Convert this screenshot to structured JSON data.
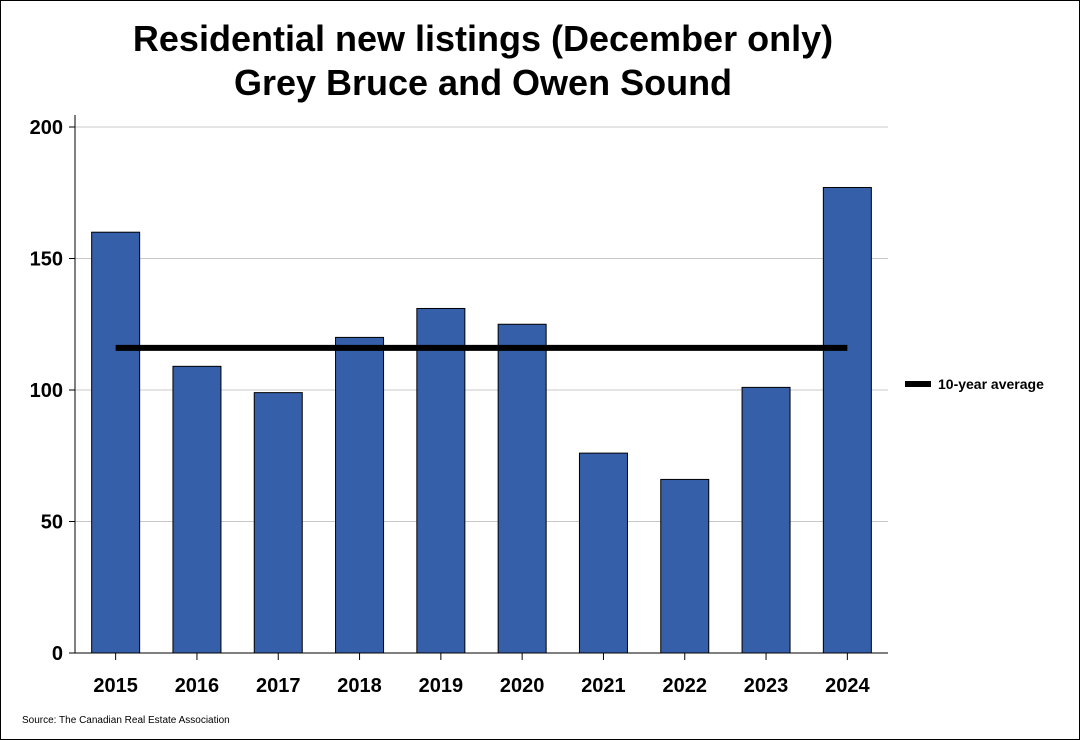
{
  "chart_data": {
    "type": "bar",
    "title": "Residential new listings (December only)",
    "subtitle": "Grey Bruce and Owen Sound",
    "categories": [
      "2015",
      "2016",
      "2017",
      "2018",
      "2019",
      "2020",
      "2021",
      "2022",
      "2023",
      "2024"
    ],
    "series": [
      {
        "name": "Residential new listings",
        "values": [
          160,
          109,
          99,
          120,
          131,
          125,
          76,
          66,
          101,
          177
        ]
      }
    ],
    "reference_line": {
      "name": "10-year average",
      "value": 116
    },
    "xlabel": "",
    "ylabel": "",
    "ylim": [
      0,
      200
    ],
    "yticks": [
      0,
      50,
      100,
      150,
      200
    ],
    "grid": true,
    "legend": {
      "placement": "right",
      "entries": [
        "10-year average"
      ]
    },
    "source": "Source: The Canadian Real Estate Association"
  },
  "colors": {
    "bar_fill": "#365FAA",
    "bar_stroke": "#000000",
    "average_line": "#000000",
    "gridline": "#C8C8C8",
    "axis": "#000000"
  }
}
